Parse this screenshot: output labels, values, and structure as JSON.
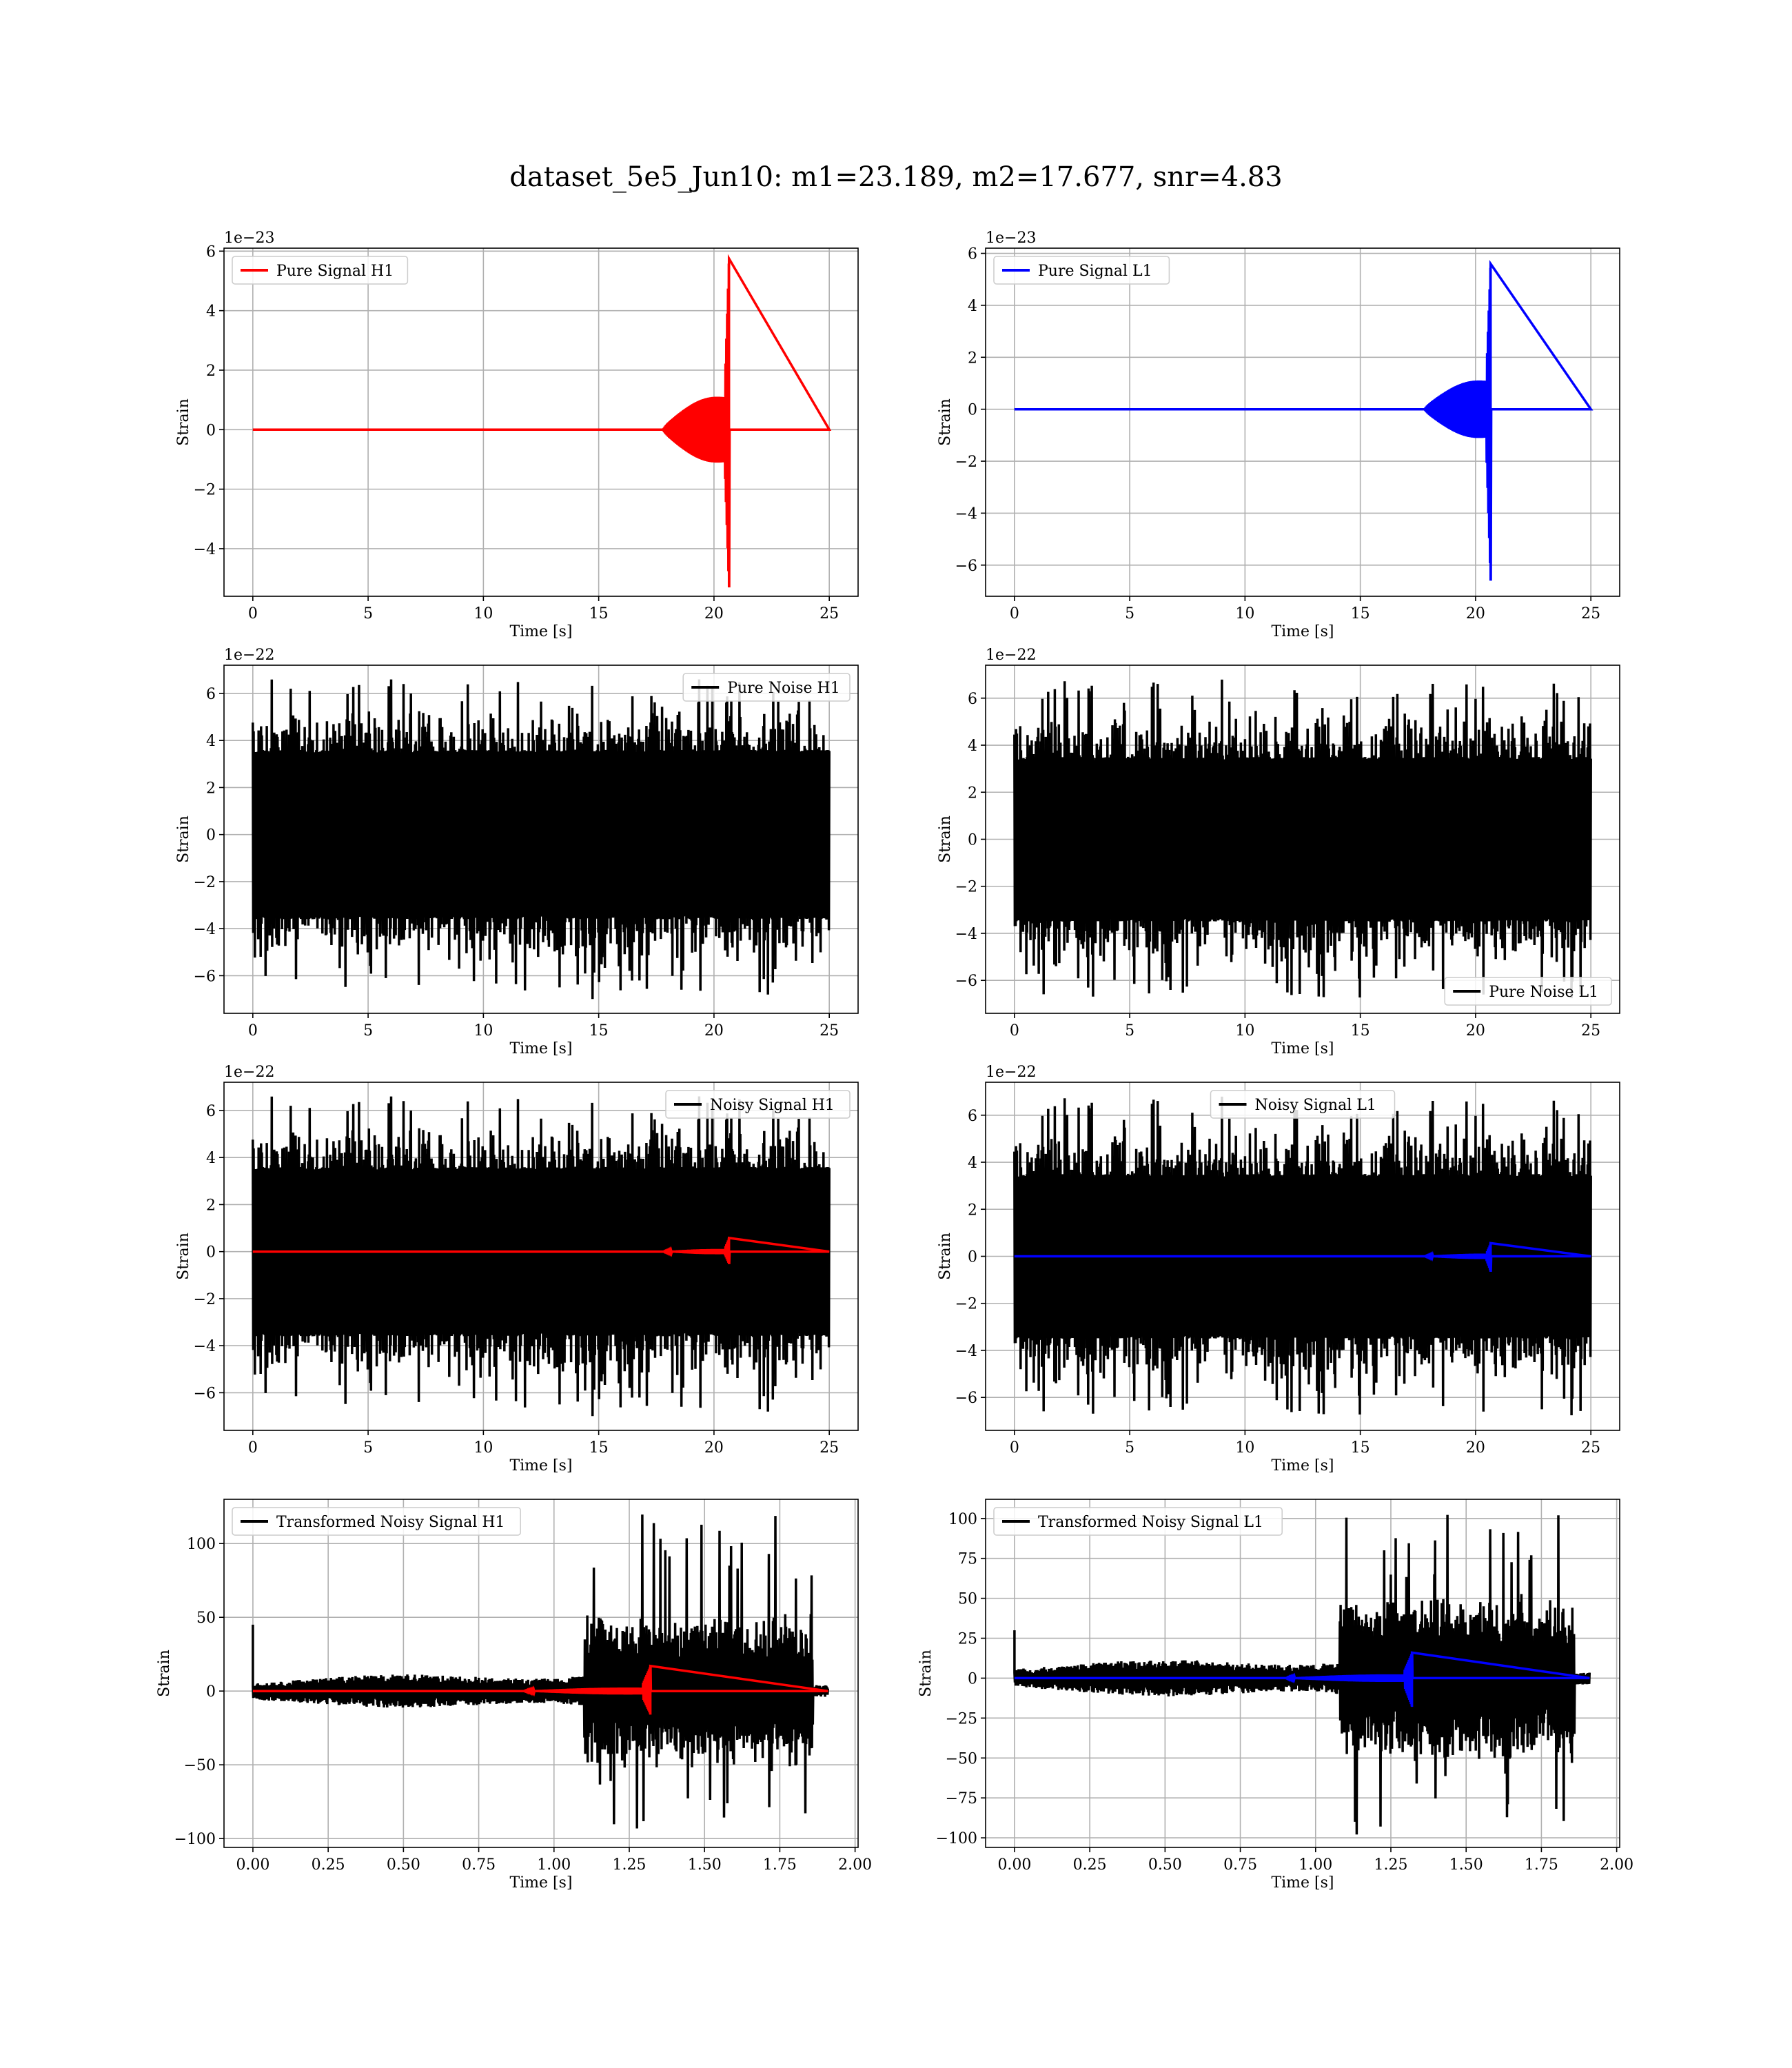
{
  "figure": {
    "title": "dataset_5e5_Jun10: m1=23.189, m2=17.677, snr=4.83"
  },
  "colors": {
    "h1": "#ff0000",
    "l1": "#0000ff",
    "noise": "#000000",
    "grid": "#b0b0b0"
  },
  "chart_data": [
    {
      "id": "pure-signal-h1",
      "type": "line",
      "xlabel": "Time [s]",
      "ylabel": "Strain",
      "offset_text": "1e−23",
      "xlim": [
        -1.25,
        26.25
      ],
      "ylim": [
        -5.6,
        6.1
      ],
      "xticks": [
        0,
        5,
        10,
        15,
        20,
        25
      ],
      "xtick_labels": [
        "0",
        "5",
        "10",
        "15",
        "20",
        "25"
      ],
      "yticks": [
        -4,
        -2,
        0,
        2,
        4,
        6
      ],
      "ytick_labels": [
        "−4",
        "−2",
        "0",
        "2",
        "4",
        "6"
      ],
      "legend": {
        "label": "Pure Signal H1",
        "position": "upper-left",
        "color": "#ff0000"
      },
      "grid": true,
      "series": [
        {
          "name": "Pure Signal H1",
          "color": "#ff0000",
          "kind": "chirp",
          "t_end": 25,
          "t_merge": 20.65,
          "peak_pos": 5.75,
          "peak_neg": -5.3,
          "env_pre": 1.4,
          "env_start": 17.8
        }
      ]
    },
    {
      "id": "pure-signal-l1",
      "type": "line",
      "xlabel": "Time [s]",
      "ylabel": "Strain",
      "offset_text": "1e−23",
      "xlim": [
        -1.25,
        26.25
      ],
      "ylim": [
        -7.2,
        6.2
      ],
      "xticks": [
        0,
        5,
        10,
        15,
        20,
        25
      ],
      "xtick_labels": [
        "0",
        "5",
        "10",
        "15",
        "20",
        "25"
      ],
      "yticks": [
        -6,
        -4,
        -2,
        0,
        2,
        4,
        6
      ],
      "ytick_labels": [
        "−6",
        "−4",
        "−2",
        "0",
        "2",
        "4",
        "6"
      ],
      "legend": {
        "label": "Pure Signal L1",
        "position": "upper-left",
        "color": "#0000ff"
      },
      "grid": true,
      "series": [
        {
          "name": "Pure Signal L1",
          "color": "#0000ff",
          "kind": "chirp",
          "t_end": 25,
          "t_merge": 20.65,
          "peak_pos": 5.6,
          "peak_neg": -6.6,
          "env_pre": 1.4,
          "env_start": 17.8
        }
      ]
    },
    {
      "id": "pure-noise-h1",
      "type": "line",
      "xlabel": "Time [s]",
      "ylabel": "Strain",
      "offset_text": "1e−22",
      "xlim": [
        -1.25,
        26.25
      ],
      "ylim": [
        -7.6,
        7.2
      ],
      "xticks": [
        0,
        5,
        10,
        15,
        20,
        25
      ],
      "xtick_labels": [
        "0",
        "5",
        "10",
        "15",
        "20",
        "25"
      ],
      "yticks": [
        -6,
        -4,
        -2,
        0,
        2,
        4,
        6
      ],
      "ytick_labels": [
        "−6",
        "−4",
        "−2",
        "0",
        "2",
        "4",
        "6"
      ],
      "legend": {
        "label": "Pure Noise H1",
        "position": "upper-right",
        "color": "#000000"
      },
      "grid": true,
      "series": [
        {
          "name": "Pure Noise H1",
          "color": "#000000",
          "kind": "noise",
          "t_end": 25,
          "core": 3.6,
          "spike_max": 6.6,
          "spike_min": -7.0,
          "seed": 11
        }
      ]
    },
    {
      "id": "pure-noise-l1",
      "type": "line",
      "xlabel": "Time [s]",
      "ylabel": "Strain",
      "offset_text": "1e−22",
      "xlim": [
        -1.25,
        26.25
      ],
      "ylim": [
        -7.4,
        7.4
      ],
      "xticks": [
        0,
        5,
        10,
        15,
        20,
        25
      ],
      "xtick_labels": [
        "0",
        "5",
        "10",
        "15",
        "20",
        "25"
      ],
      "yticks": [
        -6,
        -4,
        -2,
        0,
        2,
        4,
        6
      ],
      "ytick_labels": [
        "−6",
        "−4",
        "−2",
        "0",
        "2",
        "4",
        "6"
      ],
      "legend": {
        "label": "Pure Noise L1",
        "position": "lower-right",
        "color": "#000000"
      },
      "grid": true,
      "series": [
        {
          "name": "Pure Noise L1",
          "color": "#000000",
          "kind": "noise",
          "t_end": 25,
          "core": 3.5,
          "spike_max": 6.8,
          "spike_min": -6.8,
          "seed": 23
        }
      ]
    },
    {
      "id": "noisy-signal-h1",
      "type": "line",
      "xlabel": "Time [s]",
      "ylabel": "Strain",
      "offset_text": "1e−22",
      "xlim": [
        -1.25,
        26.25
      ],
      "ylim": [
        -7.6,
        7.2
      ],
      "xticks": [
        0,
        5,
        10,
        15,
        20,
        25
      ],
      "xtick_labels": [
        "0",
        "5",
        "10",
        "15",
        "20",
        "25"
      ],
      "yticks": [
        -6,
        -4,
        -2,
        0,
        2,
        4,
        6
      ],
      "ytick_labels": [
        "−6",
        "−4",
        "−2",
        "0",
        "2",
        "4",
        "6"
      ],
      "legend": {
        "label": "Noisy Signal H1",
        "position": "upper-right",
        "color": "#000000"
      },
      "grid": true,
      "series": [
        {
          "name": "Noisy Signal H1",
          "color": "#000000",
          "kind": "noise",
          "t_end": 25,
          "core": 3.6,
          "spike_max": 6.6,
          "spike_min": -7.0,
          "seed": 11
        },
        {
          "name": "",
          "color": "#ff0000",
          "kind": "chirp",
          "t_end": 25,
          "t_merge": 20.65,
          "peak_pos": 0.58,
          "peak_neg": -0.53,
          "env_pre": 0.14,
          "env_start": 17.8
        }
      ]
    },
    {
      "id": "noisy-signal-l1",
      "type": "line",
      "xlabel": "Time [s]",
      "ylabel": "Strain",
      "offset_text": "1e−22",
      "xlim": [
        -1.25,
        26.25
      ],
      "ylim": [
        -7.4,
        7.4
      ],
      "xticks": [
        0,
        5,
        10,
        15,
        20,
        25
      ],
      "xtick_labels": [
        "0",
        "5",
        "10",
        "15",
        "20",
        "25"
      ],
      "yticks": [
        -6,
        -4,
        -2,
        0,
        2,
        4,
        6
      ],
      "ytick_labels": [
        "−6",
        "−4",
        "−2",
        "0",
        "2",
        "4",
        "6"
      ],
      "legend": {
        "label": "Noisy Signal L1",
        "position": "upper-center",
        "color": "#000000"
      },
      "grid": true,
      "series": [
        {
          "name": "Noisy Signal L1",
          "color": "#000000",
          "kind": "noise",
          "t_end": 25,
          "core": 3.5,
          "spike_max": 6.8,
          "spike_min": -6.8,
          "seed": 23
        },
        {
          "name": "",
          "color": "#0000ff",
          "kind": "chirp",
          "t_end": 25,
          "t_merge": 20.65,
          "peak_pos": 0.56,
          "peak_neg": -0.66,
          "env_pre": 0.14,
          "env_start": 17.8
        }
      ]
    },
    {
      "id": "transformed-noisy-signal-h1",
      "type": "line",
      "xlabel": "Time [s]",
      "ylabel": "Strain",
      "offset_text": "",
      "xlim": [
        -0.096,
        2.01
      ],
      "ylim": [
        -106,
        130
      ],
      "xticks": [
        0,
        0.25,
        0.5,
        0.75,
        1.0,
        1.25,
        1.5,
        1.75,
        2.0
      ],
      "xtick_labels": [
        "0.00",
        "0.25",
        "0.50",
        "0.75",
        "1.00",
        "1.25",
        "1.50",
        "1.75",
        "2.00"
      ],
      "yticks": [
        -100,
        -50,
        0,
        50,
        100
      ],
      "ytick_labels": [
        "−100",
        "−50",
        "0",
        "50",
        "100"
      ],
      "legend": {
        "label": "Transformed Noisy Signal H1",
        "position": "upper-left",
        "color": "#000000"
      },
      "grid": true,
      "series": [
        {
          "name": "Transformed Noisy Signal H1",
          "color": "#000000",
          "kind": "whitened",
          "t_end": 1.91,
          "seed": 37,
          "spike0": 45,
          "t_rise": 1.1,
          "t_fall": 1.86,
          "max_pos": 120,
          "max_neg": -100
        },
        {
          "name": "",
          "color": "#ff0000",
          "kind": "chirp",
          "t_end": 1.91,
          "t_merge": 1.32,
          "peak_pos": 17,
          "peak_neg": -16,
          "env_pre": 3,
          "env_start": 0.9
        }
      ]
    },
    {
      "id": "transformed-noisy-signal-l1",
      "type": "line",
      "xlabel": "Time [s]",
      "ylabel": "Strain",
      "offset_text": "",
      "xlim": [
        -0.096,
        2.01
      ],
      "ylim": [
        -106,
        112
      ],
      "xticks": [
        0,
        0.25,
        0.5,
        0.75,
        1.0,
        1.25,
        1.5,
        1.75,
        2.0
      ],
      "xtick_labels": [
        "0.00",
        "0.25",
        "0.50",
        "0.75",
        "1.00",
        "1.25",
        "1.50",
        "1.75",
        "2.00"
      ],
      "yticks": [
        -100,
        -75,
        -50,
        -25,
        0,
        25,
        50,
        75,
        100
      ],
      "ytick_labels": [
        "−100",
        "−75",
        "−50",
        "−25",
        "0",
        "25",
        "50",
        "75",
        "100"
      ],
      "legend": {
        "label": "Transformed Noisy Signal L1",
        "position": "upper-left",
        "color": "#000000"
      },
      "grid": true,
      "series": [
        {
          "name": "Transformed Noisy Signal L1",
          "color": "#000000",
          "kind": "whitened",
          "t_end": 1.91,
          "seed": 53,
          "spike0": 30,
          "t_rise": 1.08,
          "t_fall": 1.86,
          "max_pos": 103,
          "max_neg": -98
        },
        {
          "name": "",
          "color": "#0000ff",
          "kind": "chirp",
          "t_end": 1.91,
          "t_merge": 1.32,
          "peak_pos": 16,
          "peak_neg": -18,
          "env_pre": 3,
          "env_start": 0.9
        }
      ]
    }
  ]
}
